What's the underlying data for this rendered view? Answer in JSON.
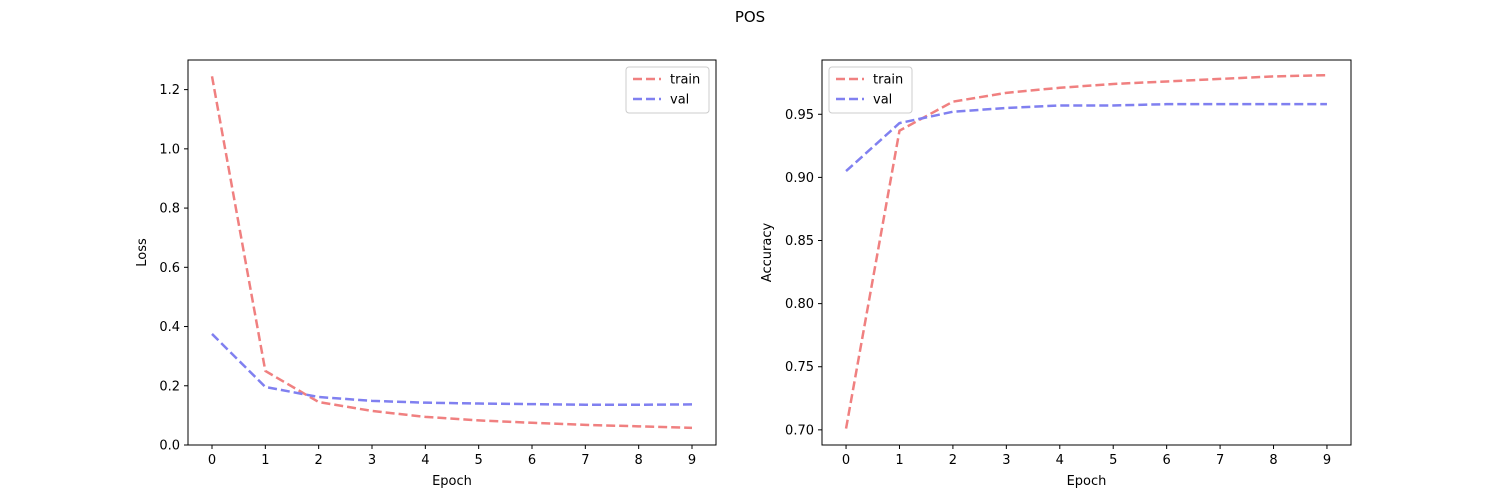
{
  "figure": {
    "title": "POS"
  },
  "chart_data": [
    {
      "type": "line",
      "title": "",
      "xlabel": "Epoch",
      "ylabel": "Loss",
      "x": [
        0,
        1,
        2,
        3,
        4,
        5,
        6,
        7,
        8,
        9
      ],
      "xticks": [
        "0",
        "1",
        "2",
        "3",
        "4",
        "5",
        "6",
        "7",
        "8",
        "9"
      ],
      "xlim": [
        -0.45,
        9.45
      ],
      "yticks": [
        "0.0",
        "0.2",
        "0.4",
        "0.6",
        "0.8",
        "1.0",
        "1.2"
      ],
      "ylim": [
        0.0,
        1.3
      ],
      "grid": false,
      "legend": "top-right",
      "series": [
        {
          "name": "train",
          "color": "#f08080",
          "values": [
            1.245,
            0.25,
            0.145,
            0.115,
            0.095,
            0.083,
            0.075,
            0.068,
            0.063,
            0.058
          ]
        },
        {
          "name": "val",
          "color": "#8080f0",
          "values": [
            0.375,
            0.196,
            0.162,
            0.149,
            0.143,
            0.14,
            0.138,
            0.136,
            0.136,
            0.137
          ]
        }
      ]
    },
    {
      "type": "line",
      "title": "",
      "xlabel": "Epoch",
      "ylabel": "Accuracy",
      "x": [
        0,
        1,
        2,
        3,
        4,
        5,
        6,
        7,
        8,
        9
      ],
      "xticks": [
        "0",
        "1",
        "2",
        "3",
        "4",
        "5",
        "6",
        "7",
        "8",
        "9"
      ],
      "xlim": [
        -0.45,
        9.45
      ],
      "yticks": [
        "0.70",
        "0.75",
        "0.80",
        "0.85",
        "0.90",
        "0.95"
      ],
      "ylim": [
        0.688,
        0.993
      ],
      "grid": false,
      "legend": "top-left",
      "series": [
        {
          "name": "train",
          "color": "#f08080",
          "values": [
            0.701,
            0.937,
            0.96,
            0.967,
            0.971,
            0.974,
            0.976,
            0.978,
            0.98,
            0.981
          ]
        },
        {
          "name": "val",
          "color": "#8080f0",
          "values": [
            0.905,
            0.943,
            0.952,
            0.955,
            0.957,
            0.957,
            0.958,
            0.958,
            0.958,
            0.958
          ]
        }
      ]
    }
  ]
}
